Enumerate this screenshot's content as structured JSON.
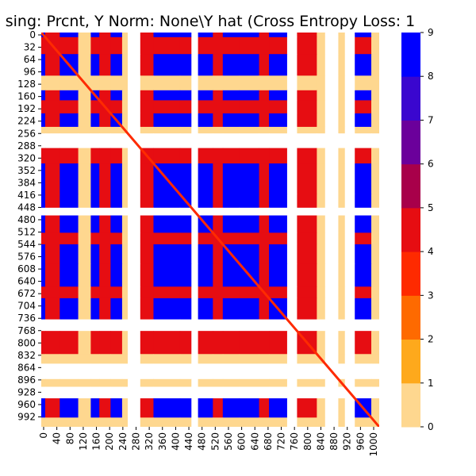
{
  "chart_data": {
    "type": "heatmap",
    "title": "sing: Prcnt, Y Norm: None\\Y hat (Cross Entropy Loss: 1",
    "xlabel": "",
    "ylabel": "",
    "x_tick_labels": [
      "0",
      "40",
      "80",
      "120",
      "160",
      "200",
      "240",
      "280",
      "320",
      "360",
      "400",
      "440",
      "480",
      "520",
      "560",
      "600",
      "640",
      "680",
      "720",
      "760",
      "800",
      "840",
      "880",
      "920",
      "960",
      "1000"
    ],
    "y_tick_labels": [
      "0",
      "32",
      "64",
      "96",
      "128",
      "160",
      "192",
      "224",
      "256",
      "288",
      "320",
      "352",
      "384",
      "416",
      "448",
      "480",
      "512",
      "544",
      "576",
      "608",
      "640",
      "672",
      "704",
      "736",
      "768",
      "800",
      "832",
      "864",
      "896",
      "928",
      "960",
      "992"
    ],
    "x_range": [
      0,
      1024
    ],
    "y_range": [
      0,
      1024
    ],
    "colorbar": {
      "min": 0,
      "max": 9,
      "tick_labels": [
        "0",
        "1",
        "2",
        "3",
        "4",
        "5",
        "6",
        "7",
        "8",
        "9"
      ],
      "colors": [
        "#ffffff",
        "#fed78f",
        "#fea91c",
        "#fe6a00",
        "#fe2a00",
        "#e60d12",
        "#a8004a",
        "#6b009b",
        "#3a06cf",
        "#0000ff"
      ]
    },
    "band_profile": [
      {
        "start": 0,
        "end": 12,
        "level": 8
      },
      {
        "start": 12,
        "end": 56,
        "level": 5
      },
      {
        "start": 56,
        "end": 112,
        "level": 7
      },
      {
        "start": 112,
        "end": 150,
        "level": 1
      },
      {
        "start": 150,
        "end": 176,
        "level": 8
      },
      {
        "start": 176,
        "end": 210,
        "level": 5
      },
      {
        "start": 210,
        "end": 245,
        "level": 9
      },
      {
        "start": 245,
        "end": 262,
        "level": 1
      },
      {
        "start": 262,
        "end": 300,
        "level": 0
      },
      {
        "start": 300,
        "end": 340,
        "level": 5
      },
      {
        "start": 340,
        "end": 420,
        "level": 9
      },
      {
        "start": 420,
        "end": 455,
        "level": 8
      },
      {
        "start": 455,
        "end": 475,
        "level": 0
      },
      {
        "start": 475,
        "end": 520,
        "level": 9
      },
      {
        "start": 520,
        "end": 550,
        "level": 5
      },
      {
        "start": 550,
        "end": 600,
        "level": 9
      },
      {
        "start": 600,
        "end": 660,
        "level": 8
      },
      {
        "start": 660,
        "end": 690,
        "level": 5
      },
      {
        "start": 690,
        "end": 745,
        "level": 9
      },
      {
        "start": 745,
        "end": 775,
        "level": 0
      },
      {
        "start": 775,
        "end": 835,
        "level": 5
      },
      {
        "start": 835,
        "end": 860,
        "level": 1
      },
      {
        "start": 860,
        "end": 900,
        "level": 0
      },
      {
        "start": 900,
        "end": 920,
        "level": 1
      },
      {
        "start": 920,
        "end": 950,
        "level": 0
      },
      {
        "start": 950,
        "end": 1000,
        "level": 8
      },
      {
        "start": 1000,
        "end": 1024,
        "level": 1
      }
    ],
    "diagonal_level": 4
  }
}
